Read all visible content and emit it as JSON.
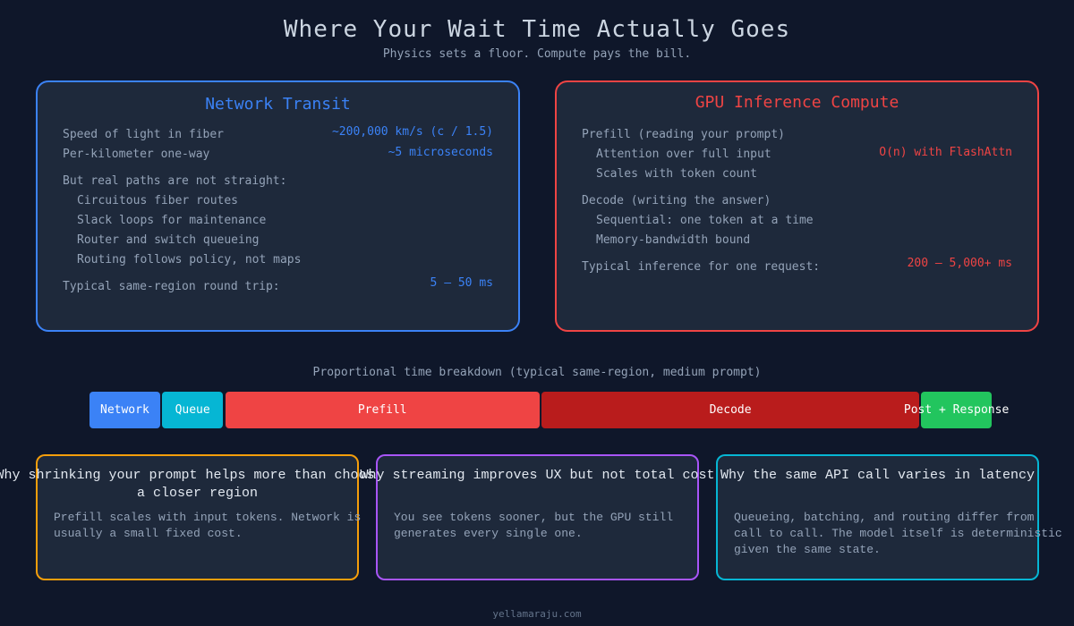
{
  "header": {
    "title": "Where Your Wait Time Actually Goes",
    "subtitle": "Physics sets a floor.  Compute pays the bill."
  },
  "colors": {
    "background": "#0f172a",
    "card": "#1e293b",
    "network": "#3b82f6",
    "gpu": "#ef4444",
    "orange": "#f59e0b",
    "purple": "#a855f7",
    "cyan": "#06b6d4"
  },
  "network": {
    "title": "Network Transit",
    "rows": [
      {
        "label": "Speed of light in fiber",
        "value": "~200,000 km/s (c / 1.5)"
      },
      {
        "label": "Per-kilometer one-way",
        "value": "~5 microseconds"
      }
    ],
    "paths_heading": "But real paths are not straight:",
    "paths": [
      "Circuitous fiber routes",
      "Slack loops for maintenance",
      "Router and switch queueing",
      "Routing follows policy, not maps"
    ],
    "total_label": "Typical same-region round trip:",
    "total_value": "5 – 50 ms"
  },
  "gpu": {
    "title": "GPU Inference Compute",
    "prefill_heading": "Prefill (reading your prompt)",
    "prefill_items": [
      "Attention over full input",
      "Scales with token count"
    ],
    "prefill_value": "O(n) with FlashAttn",
    "decode_heading": "Decode (writing the answer)",
    "decode_items": [
      "Sequential: one token at a time",
      "Memory-bandwidth bound"
    ],
    "total_label": "Typical inference for one request:",
    "total_value": "200 – 5,000+ ms"
  },
  "breakdown": {
    "label": "Proportional time breakdown (typical same-region, medium prompt)",
    "segments": [
      {
        "label": "Network",
        "percent": 8,
        "color": "#3b82f6"
      },
      {
        "label": "Queue",
        "percent": 7,
        "color": "#06b6d4"
      },
      {
        "label": "Prefill",
        "percent": 35,
        "color": "#ef4444"
      },
      {
        "label": "Decode",
        "percent": 42,
        "color": "#b91c1c"
      },
      {
        "label": "Post + Response",
        "percent": 8,
        "color": "#22c55e"
      }
    ]
  },
  "insights": [
    {
      "title": "Why shrinking your prompt helps more than choosing a closer region",
      "text": "Prefill scales with input tokens. Network is usually a small fixed cost.",
      "color": "#f59e0b"
    },
    {
      "title": "Why streaming improves UX but not total cost",
      "text": "You see tokens sooner, but the GPU still generates every single one.",
      "color": "#a855f7"
    },
    {
      "title": "Why the same API call varies in latency",
      "text": "Queueing, batching, and routing differ from call to call. The model itself is deterministic given the same state.",
      "color": "#06b6d4"
    }
  ],
  "footer": "yellamaraju.com"
}
